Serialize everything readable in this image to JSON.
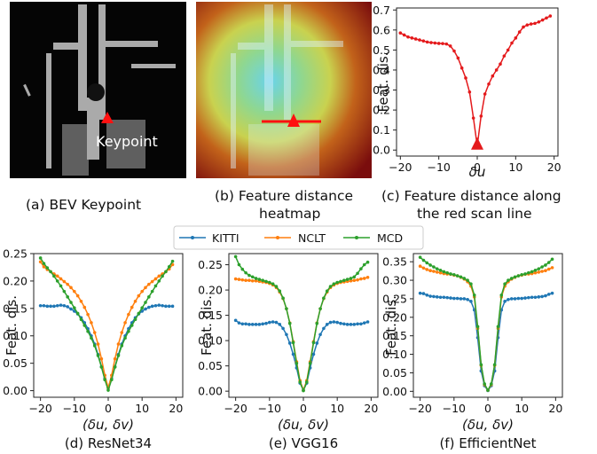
{
  "images": {
    "bev_caption": "(a) BEV Keypoint",
    "bev_keypoint_label": "Keypoint",
    "heatmap_caption_line1": "(b) Feature distance",
    "heatmap_caption_line2": "heatmap",
    "scan_caption_line1": "(c) Feature distance along",
    "scan_caption_line2": "the red scan line"
  },
  "colors": {
    "KITTI": "#1f77b4",
    "NCLT": "#ff7f0e",
    "MCD": "#2ca02c",
    "scan": "#e41a1c"
  },
  "legend": [
    "KITTI",
    "NCLT",
    "MCD"
  ],
  "chart_data": [
    {
      "id": "c",
      "type": "line",
      "caption": [
        "(c) Feature distance along",
        "the red scan line"
      ],
      "xlabel": "δu",
      "ylabel": "Feat. dis.",
      "xlim": [
        -21,
        21
      ],
      "ylim": [
        -0.03,
        0.71
      ],
      "xticks": [
        -20,
        -10,
        0,
        10,
        20
      ],
      "yticks": [
        0.0,
        0.1,
        0.2,
        0.3,
        0.4,
        0.5,
        0.6,
        0.7
      ],
      "ytick_labels": [
        "0.0",
        "0.1",
        "0.2",
        "0.3",
        "0.4",
        "0.5",
        "0.6",
        "0.7"
      ],
      "grid": false,
      "series": [
        {
          "color_key": "scan",
          "x": [
            -20,
            -19,
            -18,
            -17,
            -16,
            -15,
            -14,
            -13,
            -12,
            -11,
            -10,
            -9,
            -8,
            -7,
            -6,
            -5,
            -4,
            -3,
            -2,
            -1,
            0,
            1,
            2,
            3,
            4,
            5,
            6,
            7,
            8,
            9,
            10,
            11,
            12,
            13,
            14,
            15,
            16,
            17,
            18,
            19
          ],
          "values": [
            0.585,
            0.575,
            0.565,
            0.56,
            0.555,
            0.55,
            0.545,
            0.54,
            0.537,
            0.535,
            0.533,
            0.532,
            0.53,
            0.52,
            0.495,
            0.46,
            0.41,
            0.36,
            0.29,
            0.16,
            0.02,
            0.17,
            0.28,
            0.33,
            0.37,
            0.4,
            0.43,
            0.47,
            0.5,
            0.535,
            0.56,
            0.59,
            0.615,
            0.625,
            0.63,
            0.633,
            0.64,
            0.65,
            0.66,
            0.67
          ]
        }
      ],
      "markers": [
        {
          "type": "triangle",
          "x": 0,
          "y": 0.02,
          "color_key": "scan"
        }
      ]
    },
    {
      "id": "d",
      "type": "line",
      "caption": "(d) ResNet34",
      "xlabel": "(δu, δv)",
      "ylabel": "Feat. dis.",
      "xlim": [
        -22,
        22
      ],
      "ylim": [
        -0.012,
        0.25
      ],
      "xticks": [
        -20,
        -10,
        0,
        10,
        20
      ],
      "yticks": [
        0.0,
        0.05,
        0.1,
        0.15,
        0.2,
        0.25
      ],
      "ytick_labels": [
        "0.00",
        "0.05",
        "0.10",
        "0.15",
        "0.20",
        "0.25"
      ],
      "grid": false,
      "series": [
        {
          "name": "KITTI",
          "color_key": "KITTI",
          "x": [
            -20,
            -19,
            -18,
            -17,
            -16,
            -15,
            -14,
            -13,
            -12,
            -11,
            -10,
            -9,
            -8,
            -7,
            -6,
            -5,
            -4,
            -3,
            -2,
            -1,
            0,
            1,
            2,
            3,
            4,
            5,
            6,
            7,
            8,
            9,
            10,
            11,
            12,
            13,
            14,
            15,
            16,
            17,
            18,
            19
          ],
          "values": [
            0.155,
            0.155,
            0.154,
            0.154,
            0.154,
            0.155,
            0.156,
            0.155,
            0.153,
            0.149,
            0.145,
            0.14,
            0.133,
            0.124,
            0.113,
            0.1,
            0.085,
            0.066,
            0.044,
            0.022,
            0.005,
            0.022,
            0.044,
            0.066,
            0.085,
            0.1,
            0.113,
            0.124,
            0.133,
            0.14,
            0.145,
            0.149,
            0.152,
            0.154,
            0.155,
            0.156,
            0.155,
            0.154,
            0.154,
            0.154
          ]
        },
        {
          "name": "NCLT",
          "color_key": "NCLT",
          "x": [
            -20,
            -19,
            -18,
            -17,
            -16,
            -15,
            -14,
            -13,
            -12,
            -11,
            -10,
            -9,
            -8,
            -7,
            -6,
            -5,
            -4,
            -3,
            -2,
            -1,
            0,
            1,
            2,
            3,
            4,
            5,
            6,
            7,
            8,
            9,
            10,
            11,
            12,
            13,
            14,
            15,
            16,
            17,
            18,
            19
          ],
          "values": [
            0.235,
            0.226,
            0.221,
            0.217,
            0.213,
            0.209,
            0.204,
            0.199,
            0.194,
            0.188,
            0.181,
            0.173,
            0.163,
            0.152,
            0.139,
            0.124,
            0.106,
            0.085,
            0.058,
            0.028,
            0.005,
            0.028,
            0.058,
            0.085,
            0.106,
            0.124,
            0.139,
            0.152,
            0.163,
            0.173,
            0.181,
            0.188,
            0.194,
            0.199,
            0.204,
            0.209,
            0.213,
            0.217,
            0.222,
            0.23
          ]
        },
        {
          "name": "MCD",
          "color_key": "MCD",
          "x": [
            -20,
            -19,
            -18,
            -17,
            -16,
            -15,
            -14,
            -13,
            -12,
            -11,
            -10,
            -9,
            -8,
            -7,
            -6,
            -5,
            -4,
            -3,
            -2,
            -1,
            0,
            1,
            2,
            3,
            4,
            5,
            6,
            7,
            8,
            9,
            10,
            11,
            12,
            13,
            14,
            15,
            16,
            17,
            18,
            19
          ],
          "values": [
            0.242,
            0.232,
            0.224,
            0.217,
            0.209,
            0.2,
            0.191,
            0.181,
            0.171,
            0.161,
            0.151,
            0.141,
            0.13,
            0.119,
            0.108,
            0.096,
            0.082,
            0.064,
            0.043,
            0.02,
            0.001,
            0.02,
            0.043,
            0.064,
            0.082,
            0.096,
            0.108,
            0.119,
            0.13,
            0.141,
            0.151,
            0.161,
            0.171,
            0.181,
            0.191,
            0.2,
            0.209,
            0.217,
            0.226,
            0.236
          ]
        }
      ]
    },
    {
      "id": "e",
      "type": "line",
      "caption": "(e) VGG16",
      "xlabel": "(δu, δv)",
      "ylabel": "Feat. dis.",
      "xlim": [
        -22,
        22
      ],
      "ylim": [
        -0.012,
        0.272
      ],
      "xticks": [
        -20,
        -10,
        0,
        10,
        20
      ],
      "yticks": [
        0.0,
        0.05,
        0.1,
        0.15,
        0.2,
        0.25
      ],
      "ytick_labels": [
        "0.00",
        "0.05",
        "0.10",
        "0.15",
        "0.20",
        "0.25"
      ],
      "grid": false,
      "series": [
        {
          "name": "KITTI",
          "color_key": "KITTI",
          "x": [
            -20,
            -19,
            -18,
            -17,
            -16,
            -15,
            -14,
            -13,
            -12,
            -11,
            -10,
            -9,
            -8,
            -7,
            -6,
            -5,
            -4,
            -3,
            -2,
            -1,
            0,
            1,
            2,
            3,
            4,
            5,
            6,
            7,
            8,
            9,
            10,
            11,
            12,
            13,
            14,
            15,
            16,
            17,
            18,
            19
          ],
          "values": [
            0.14,
            0.135,
            0.133,
            0.133,
            0.132,
            0.132,
            0.132,
            0.132,
            0.133,
            0.134,
            0.136,
            0.137,
            0.136,
            0.132,
            0.124,
            0.112,
            0.095,
            0.073,
            0.046,
            0.016,
            0.002,
            0.016,
            0.046,
            0.073,
            0.095,
            0.112,
            0.124,
            0.132,
            0.136,
            0.137,
            0.136,
            0.134,
            0.133,
            0.132,
            0.132,
            0.132,
            0.133,
            0.133,
            0.135,
            0.137
          ]
        },
        {
          "name": "NCLT",
          "color_key": "NCLT",
          "x": [
            -20,
            -19,
            -18,
            -17,
            -16,
            -15,
            -14,
            -13,
            -12,
            -11,
            -10,
            -9,
            -8,
            -7,
            -6,
            -5,
            -4,
            -3,
            -2,
            -1,
            0,
            1,
            2,
            3,
            4,
            5,
            6,
            7,
            8,
            9,
            10,
            11,
            12,
            13,
            14,
            15,
            16,
            17,
            18,
            19
          ],
          "values": [
            0.222,
            0.221,
            0.22,
            0.219,
            0.219,
            0.218,
            0.218,
            0.217,
            0.216,
            0.215,
            0.213,
            0.21,
            0.205,
            0.196,
            0.183,
            0.163,
            0.135,
            0.098,
            0.058,
            0.021,
            0.002,
            0.021,
            0.058,
            0.098,
            0.135,
            0.163,
            0.183,
            0.196,
            0.205,
            0.21,
            0.213,
            0.215,
            0.216,
            0.217,
            0.218,
            0.219,
            0.22,
            0.222,
            0.223,
            0.225
          ]
        },
        {
          "name": "MCD",
          "color_key": "MCD",
          "x": [
            -20,
            -19,
            -18,
            -17,
            -16,
            -15,
            -14,
            -13,
            -12,
            -11,
            -10,
            -9,
            -8,
            -7,
            -6,
            -5,
            -4,
            -3,
            -2,
            -1,
            0,
            1,
            2,
            3,
            4,
            5,
            6,
            7,
            8,
            9,
            10,
            11,
            12,
            13,
            14,
            15,
            16,
            17,
            18,
            19
          ],
          "values": [
            0.266,
            0.25,
            0.241,
            0.234,
            0.229,
            0.226,
            0.223,
            0.221,
            0.219,
            0.217,
            0.215,
            0.212,
            0.207,
            0.198,
            0.184,
            0.163,
            0.134,
            0.096,
            0.055,
            0.018,
            0.001,
            0.018,
            0.055,
            0.096,
            0.134,
            0.163,
            0.184,
            0.198,
            0.207,
            0.212,
            0.215,
            0.217,
            0.219,
            0.221,
            0.223,
            0.226,
            0.233,
            0.242,
            0.25,
            0.255
          ]
        }
      ]
    },
    {
      "id": "f",
      "type": "line",
      "caption": "(f) EfficientNet",
      "xlabel": "(δu, δv)",
      "ylabel": "Feat. dis.",
      "xlim": [
        -22,
        22
      ],
      "ylim": [
        -0.016,
        0.372
      ],
      "xticks": [
        -20,
        -10,
        0,
        10,
        20
      ],
      "yticks": [
        0.0,
        0.05,
        0.1,
        0.15,
        0.2,
        0.25,
        0.3,
        0.35
      ],
      "ytick_labels": [
        "0.00",
        "0.05",
        "0.10",
        "0.15",
        "0.20",
        "0.25",
        "0.30",
        "0.35"
      ],
      "grid": false,
      "series": [
        {
          "name": "KITTI",
          "color_key": "KITTI",
          "x": [
            -20,
            -19,
            -18,
            -17,
            -16,
            -15,
            -14,
            -13,
            -12,
            -11,
            -10,
            -9,
            -8,
            -7,
            -6,
            -5,
            -4,
            -3,
            -2,
            -1,
            0,
            1,
            2,
            3,
            4,
            5,
            6,
            7,
            8,
            9,
            10,
            11,
            12,
            13,
            14,
            15,
            16,
            17,
            18,
            19
          ],
          "values": [
            0.265,
            0.264,
            0.26,
            0.257,
            0.256,
            0.255,
            0.254,
            0.254,
            0.253,
            0.252,
            0.251,
            0.251,
            0.25,
            0.25,
            0.248,
            0.243,
            0.22,
            0.145,
            0.055,
            0.015,
            0.002,
            0.015,
            0.055,
            0.145,
            0.22,
            0.243,
            0.248,
            0.25,
            0.25,
            0.251,
            0.251,
            0.252,
            0.253,
            0.254,
            0.254,
            0.255,
            0.256,
            0.258,
            0.262,
            0.265
          ]
        },
        {
          "name": "NCLT",
          "color_key": "NCLT",
          "x": [
            -20,
            -19,
            -18,
            -17,
            -16,
            -15,
            -14,
            -13,
            -12,
            -11,
            -10,
            -9,
            -8,
            -7,
            -6,
            -5,
            -4,
            -3,
            -2,
            -1,
            0,
            1,
            2,
            3,
            4,
            5,
            6,
            7,
            8,
            9,
            10,
            11,
            12,
            13,
            14,
            15,
            16,
            17,
            18,
            19
          ],
          "values": [
            0.338,
            0.333,
            0.329,
            0.326,
            0.324,
            0.322,
            0.32,
            0.318,
            0.317,
            0.316,
            0.314,
            0.312,
            0.308,
            0.303,
            0.296,
            0.284,
            0.255,
            0.17,
            0.07,
            0.018,
            0.003,
            0.018,
            0.07,
            0.17,
            0.255,
            0.284,
            0.296,
            0.303,
            0.308,
            0.312,
            0.314,
            0.316,
            0.317,
            0.318,
            0.32,
            0.322,
            0.324,
            0.326,
            0.33,
            0.334
          ]
        },
        {
          "name": "MCD",
          "color_key": "MCD",
          "x": [
            -20,
            -19,
            -18,
            -17,
            -16,
            -15,
            -14,
            -13,
            -12,
            -11,
            -10,
            -9,
            -8,
            -7,
            -6,
            -5,
            -4,
            -3,
            -2,
            -1,
            0,
            1,
            2,
            3,
            4,
            5,
            6,
            7,
            8,
            9,
            10,
            11,
            12,
            13,
            14,
            15,
            16,
            17,
            18,
            19
          ],
          "values": [
            0.362,
            0.354,
            0.347,
            0.341,
            0.336,
            0.331,
            0.327,
            0.323,
            0.32,
            0.317,
            0.315,
            0.312,
            0.309,
            0.305,
            0.3,
            0.29,
            0.26,
            0.175,
            0.072,
            0.02,
            0.003,
            0.02,
            0.072,
            0.175,
            0.26,
            0.29,
            0.3,
            0.305,
            0.309,
            0.312,
            0.315,
            0.317,
            0.32,
            0.323,
            0.327,
            0.331,
            0.336,
            0.341,
            0.348,
            0.357
          ]
        }
      ]
    }
  ]
}
